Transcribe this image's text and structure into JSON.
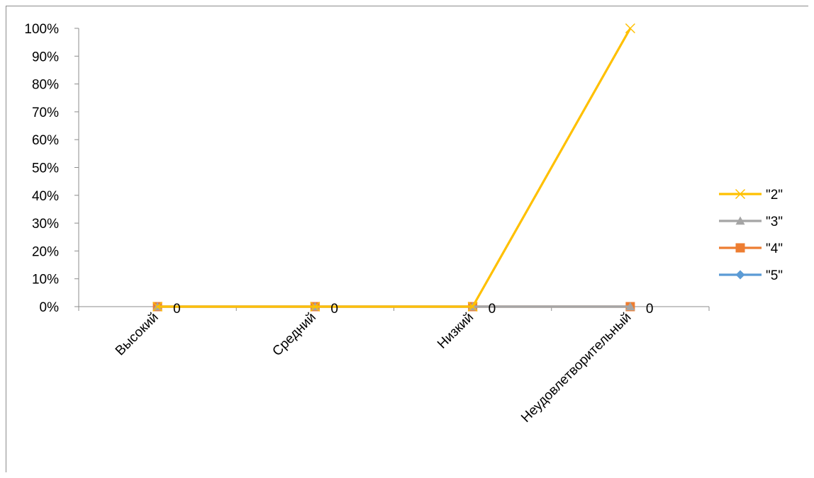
{
  "chart_data": {
    "type": "line",
    "title": "",
    "xlabel": "",
    "ylabel": "",
    "categories": [
      "Высокий",
      "Средний",
      "Низкий",
      "Неудовлетворительный"
    ],
    "ylim": [
      0,
      1
    ],
    "y_ticks": [
      "0%",
      "10%",
      "20%",
      "30%",
      "40%",
      "50%",
      "60%",
      "70%",
      "80%",
      "90%",
      "100%"
    ],
    "grid": false,
    "legend_position": "right",
    "series": [
      {
        "name": "\"2\"",
        "values": [
          0,
          0,
          0,
          1
        ],
        "color": "#FFC000",
        "marker": "x-icon"
      },
      {
        "name": "\"3\"",
        "values": [
          0,
          0,
          0,
          0
        ],
        "color": "#A5A5A5",
        "marker": "triangle-icon"
      },
      {
        "name": "\"4\"",
        "values": [
          0,
          0,
          0,
          0
        ],
        "color": "#ED7D31",
        "marker": "square-icon"
      },
      {
        "name": "\"5\"",
        "values": [
          0,
          0,
          0,
          0
        ],
        "color": "#5B9BD5",
        "marker": "diamond-icon"
      }
    ],
    "data_labels": [
      "0",
      "0",
      "0",
      "0"
    ]
  }
}
